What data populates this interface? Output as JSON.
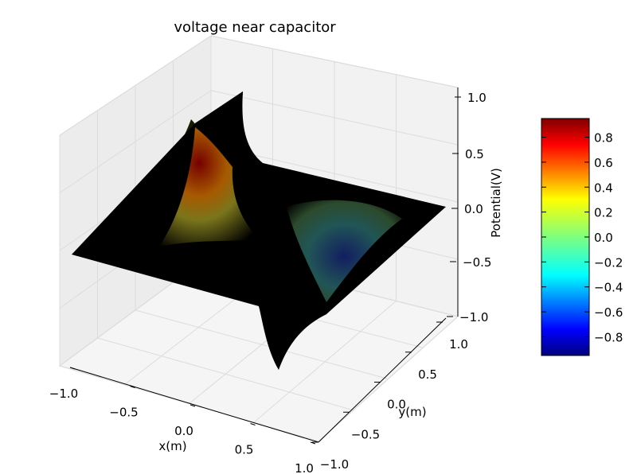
{
  "chart_data": {
    "type": "surface3d",
    "title": "voltage near capacitor",
    "xlabel": "x(m)",
    "ylabel": "y(m)",
    "zlabel": "Potential(V)",
    "xlim": [
      -1.0,
      1.0
    ],
    "ylim": [
      -1.0,
      1.0
    ],
    "zlim": [
      -1.0,
      1.0
    ],
    "x_ticks": [
      "−1.0",
      "−0.5",
      "0.0",
      "0.5",
      "1.0"
    ],
    "y_ticks": [
      "−1.0",
      "−0.5",
      "0.0",
      "0.5",
      "1.0"
    ],
    "z_ticks": [
      "−1.0",
      "−0.5",
      "0.0",
      "0.5",
      "1.0"
    ],
    "surface_description": "potential of two oppositely charged plates; positive peak near (x=-0.5,y=0), negative trough near (x=0.5,y=0)",
    "peak": {
      "x": -0.5,
      "y": 0.0,
      "z": 1.0
    },
    "trough": {
      "x": 0.5,
      "y": 0.0,
      "z": -1.0
    },
    "colormap": "jet",
    "colorbar": {
      "min": -0.95,
      "max": 0.95,
      "ticks": [
        "0.8",
        "0.6",
        "0.4",
        "0.2",
        "0.0",
        "−0.2",
        "−0.4",
        "−0.6",
        "−0.8"
      ],
      "tick_values": [
        0.8,
        0.6,
        0.4,
        0.2,
        0.0,
        -0.2,
        -0.4,
        -0.6,
        -0.8
      ]
    },
    "grid": true,
    "edge_color": "#000000"
  }
}
